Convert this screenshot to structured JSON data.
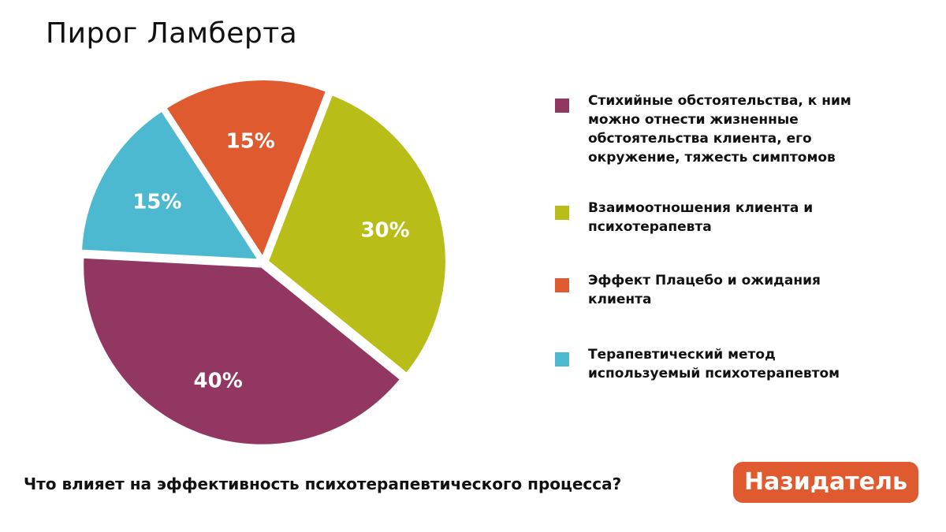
{
  "title": "Пирог Ламберта",
  "question": "Что влияет на эффективность психотерапевтического процесса?",
  "logo": "Назидатель",
  "chart_data": {
    "type": "pie",
    "title": "Пирог Ламберта",
    "slices": [
      {
        "label": "Взаимоотношения клиента и психотерапевта",
        "value": 30,
        "text": "30%",
        "color": "#b8bd17"
      },
      {
        "label": "Стихийные обстоятельства, к ним можно отнести жизненные обстоятельства клиента, его окружение, тяжесть симптомов",
        "value": 40,
        "text": "40%",
        "color": "#913762"
      },
      {
        "label": "Терапевтический метод используемый психотерапевтом",
        "value": 15,
        "text": "15%",
        "color": "#4cb9d1"
      },
      {
        "label": "Эффект Плацебо и ожидания клиента",
        "value": 15,
        "text": "15%",
        "color": "#e05a2f"
      }
    ],
    "legend_order": [
      1,
      0,
      3,
      2
    ],
    "legend_placement": "right"
  }
}
